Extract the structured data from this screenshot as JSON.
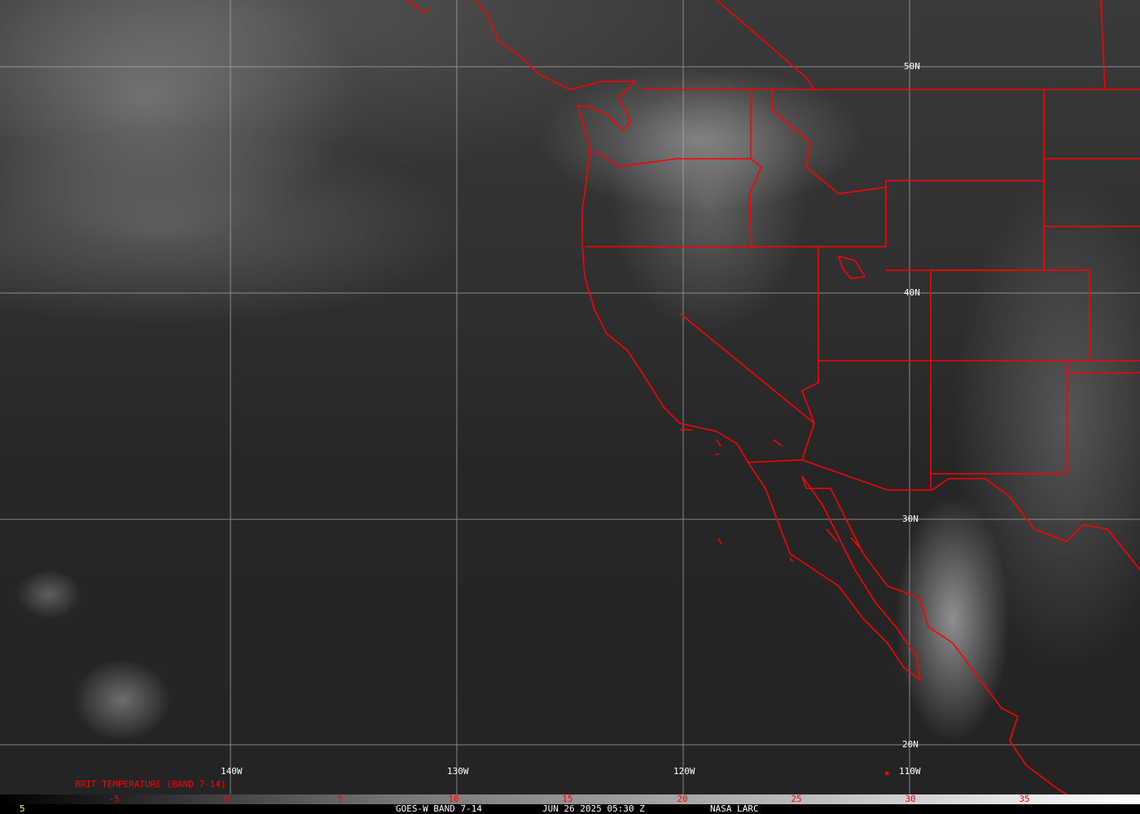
{
  "map": {
    "lon_labels": [
      "140W",
      "130W",
      "120W",
      "110W"
    ],
    "lat_labels": [
      "50N",
      "40N",
      "30N",
      "20N"
    ],
    "boundary_color": "#ff0000",
    "grid_color": "#b0b0b0"
  },
  "colorbar": {
    "title": "BRIT TEMPERATURE (BAND 7-14)",
    "ticks": [
      "-5",
      "0",
      "5",
      "10",
      "15",
      "20",
      "25",
      "30",
      "35"
    ],
    "tick_color": "#ff0000"
  },
  "footer": {
    "frame": "5",
    "product": "GOES-W BAND 7-14",
    "datetime": "JUN 26 2025 05:30 Z",
    "source": "NASA LARC"
  }
}
